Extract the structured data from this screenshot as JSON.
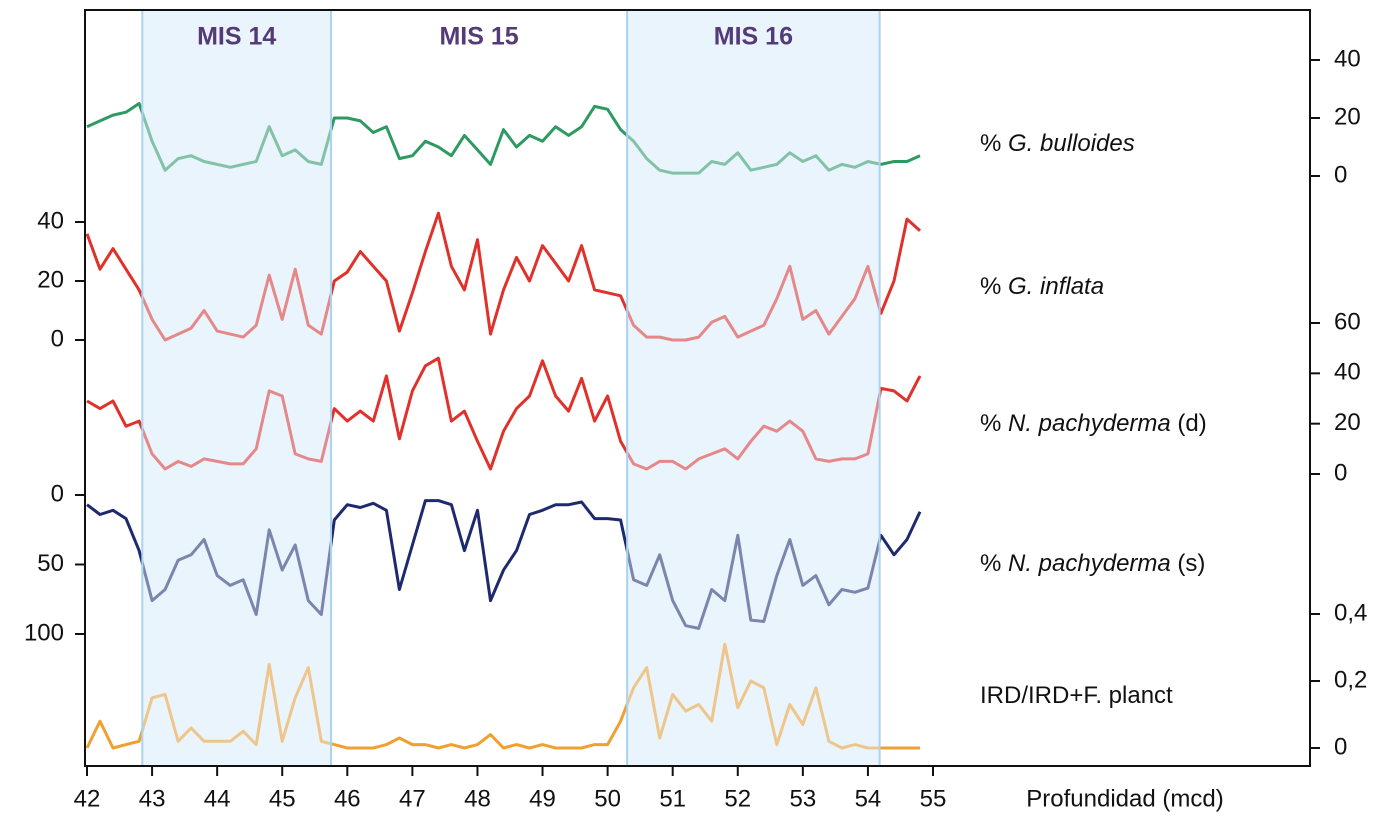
{
  "chart_data": {
    "type": "line",
    "xlabel": "Profundidad (mcd)",
    "xlim": [
      42,
      55
    ],
    "xticks": [
      42,
      43,
      44,
      45,
      46,
      47,
      48,
      49,
      50,
      51,
      52,
      53,
      54,
      55
    ],
    "periods": [
      {
        "label": "MIS 14",
        "range": [
          42.85,
          45.75
        ],
        "shaded": true
      },
      {
        "label": "MIS 15",
        "range": [
          45.75,
          50.3
        ],
        "shaded": false
      },
      {
        "label": "MIS 16",
        "range": [
          50.3,
          54.18
        ],
        "shaded": true
      }
    ],
    "x": [
      42.0,
      42.2,
      42.4,
      42.6,
      42.8,
      43.0,
      43.2,
      43.4,
      43.6,
      43.8,
      44.0,
      44.2,
      44.4,
      44.6,
      44.8,
      45.0,
      45.2,
      45.4,
      45.6,
      45.8,
      46.0,
      46.2,
      46.4,
      46.6,
      46.8,
      47.0,
      47.2,
      47.4,
      47.6,
      47.8,
      48.0,
      48.2,
      48.4,
      48.6,
      48.8,
      49.0,
      49.2,
      49.4,
      49.6,
      49.8,
      50.0,
      50.2,
      50.4,
      50.6,
      50.8,
      51.0,
      51.2,
      51.4,
      51.6,
      51.8,
      52.0,
      52.2,
      52.4,
      52.6,
      52.8,
      53.0,
      53.2,
      53.4,
      53.6,
      53.8,
      54.0,
      54.2,
      54.4,
      54.6,
      54.8
    ],
    "series": [
      {
        "name": [
          "% ",
          "G. bulloides"
        ],
        "color": "#2e9a62",
        "axis": "right",
        "ylim": [
          0,
          40
        ],
        "yticks": [
          0,
          20,
          40
        ],
        "values": [
          17,
          19,
          21,
          22,
          25,
          12,
          2,
          6,
          7,
          5,
          4,
          3,
          4,
          5,
          17,
          7,
          9,
          5,
          4,
          20,
          20,
          19,
          15,
          17,
          6,
          7,
          12,
          10,
          7,
          14,
          9,
          4,
          16,
          10,
          14,
          12,
          17,
          14,
          17,
          24,
          23,
          16,
          12,
          6,
          2,
          1,
          1,
          1,
          5,
          4,
          8,
          2,
          3,
          4,
          8,
          5,
          7,
          2,
          4,
          3,
          5,
          4,
          5,
          5,
          7
        ]
      },
      {
        "name": [
          "% ",
          "G. inflata"
        ],
        "color": "#e0312b",
        "axis": "left",
        "ylim": [
          0,
          40
        ],
        "yticks": [
          0,
          20,
          40
        ],
        "values": [
          36,
          24,
          31,
          24,
          17,
          7,
          0,
          2,
          4,
          10,
          3,
          2,
          1,
          5,
          22,
          7,
          24,
          5,
          2,
          20,
          23,
          30,
          25,
          20,
          3,
          16,
          30,
          43,
          25,
          17,
          34,
          2,
          17,
          28,
          20,
          32,
          26,
          20,
          32,
          17,
          16,
          15,
          5,
          1,
          1,
          0,
          0,
          1,
          6,
          8,
          1,
          3,
          5,
          14,
          25,
          7,
          10,
          2,
          8,
          14,
          25,
          9,
          20,
          41,
          37
        ]
      },
      {
        "name": [
          "% ",
          "N. pachyderma",
          " (d)"
        ],
        "color": "#e0312b",
        "axis": "right",
        "ylim": [
          0,
          60
        ],
        "yticks": [
          0,
          20,
          40,
          60
        ],
        "values": [
          29,
          26,
          29,
          19,
          21,
          8,
          2,
          5,
          3,
          6,
          5,
          4,
          4,
          10,
          33,
          31,
          8,
          6,
          5,
          26,
          21,
          25,
          21,
          39,
          14,
          33,
          43,
          46,
          21,
          25,
          13,
          2,
          17,
          26,
          31,
          45,
          31,
          25,
          38,
          21,
          31,
          13,
          4,
          2,
          5,
          5,
          2,
          6,
          8,
          10,
          6,
          13,
          19,
          17,
          21,
          17,
          6,
          5,
          6,
          6,
          8,
          34,
          33,
          29,
          39
        ]
      },
      {
        "name": [
          "% ",
          "N. pachyderma",
          " (s)"
        ],
        "color": "#1f2a6e",
        "axis": "left",
        "ylim": [
          100,
          0
        ],
        "yticks": [
          0,
          50,
          100
        ],
        "values": [
          7,
          14,
          11,
          17,
          40,
          76,
          68,
          47,
          43,
          32,
          58,
          65,
          61,
          86,
          25,
          54,
          36,
          76,
          86,
          18,
          7,
          9,
          6,
          11,
          68,
          36,
          4,
          4,
          7,
          40,
          11,
          76,
          54,
          40,
          14,
          11,
          7,
          7,
          5,
          17,
          17,
          18,
          61,
          65,
          43,
          76,
          94,
          96,
          68,
          76,
          29,
          90,
          91,
          58,
          32,
          65,
          58,
          79,
          68,
          70,
          67,
          29,
          43,
          32,
          12
        ]
      },
      {
        "name": [
          "IRD/IRD+F. planct"
        ],
        "color": "#f0a030",
        "axis": "right",
        "ylim": [
          0,
          0.4
        ],
        "yticks": [
          0,
          {
            "value": 0.2,
            "label": "0,2"
          },
          {
            "value": 0.4,
            "label": "0,4"
          }
        ],
        "values": [
          0,
          0.08,
          0,
          0.01,
          0.02,
          0.15,
          0.16,
          0.02,
          0.06,
          0.02,
          0.02,
          0.02,
          0.05,
          0.01,
          0.25,
          0.02,
          0.15,
          0.24,
          0.02,
          0.01,
          0,
          0,
          0,
          0.01,
          0.03,
          0.01,
          0.01,
          0,
          0.01,
          0,
          0.01,
          0.04,
          0,
          0.01,
          0,
          0.01,
          0,
          0,
          0,
          0.01,
          0.01,
          0.08,
          0.18,
          0.24,
          0.03,
          0.16,
          0.11,
          0.13,
          0.08,
          0.31,
          0.12,
          0.2,
          0.18,
          0.01,
          0.13,
          0.07,
          0.18,
          0.02,
          0,
          0.01,
          0,
          0,
          0,
          0,
          0
        ]
      }
    ]
  }
}
